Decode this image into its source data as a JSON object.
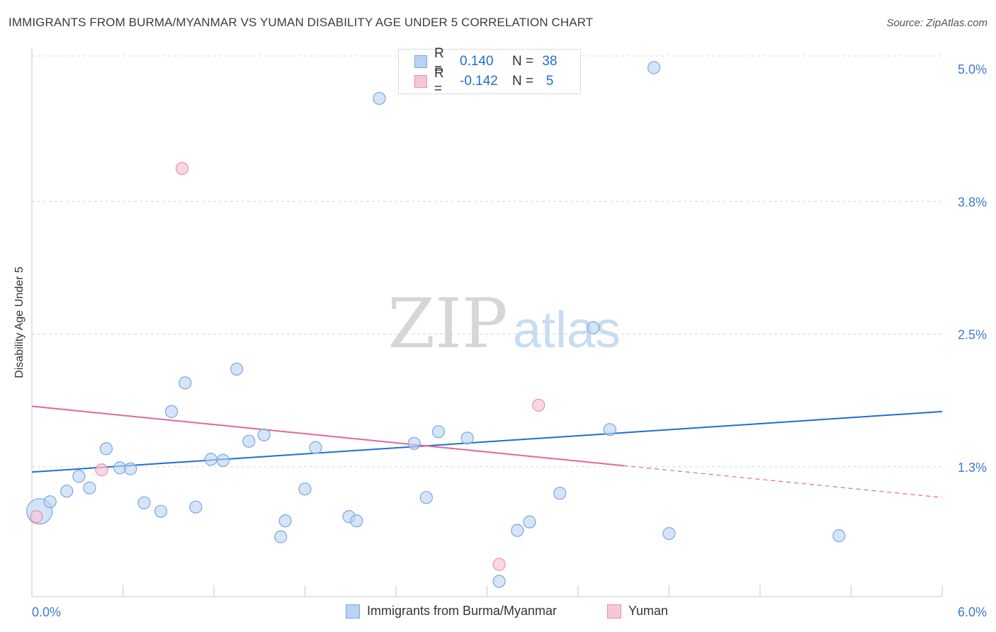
{
  "title": "IMMIGRANTS FROM BURMA/MYANMAR VS YUMAN DISABILITY AGE UNDER 5 CORRELATION CHART",
  "source": "Source: ZipAtlas.com",
  "watermark": {
    "zip": "ZIP",
    "atlas": "atlas"
  },
  "colors": {
    "blue": "#1f6fcf",
    "blue_fill": "#b9d3f3",
    "blue_stroke": "#7aa6de",
    "pink": "#e2679a",
    "pink_fill": "#f7c6d6",
    "pink_stroke": "#eb8fb1",
    "grid": "#d9d9d9",
    "tick_label": "#3d7ad1"
  },
  "legend": {
    "rows": [
      {
        "r_label": "R =",
        "r_value": "0.140",
        "n_label": "N =",
        "n_value": "38"
      },
      {
        "r_label": "R =",
        "r_value": "-0.142",
        "n_label": "N =",
        "n_value": "5"
      }
    ]
  },
  "bottom_legend": [
    "Immigrants from Burma/Myanmar",
    "Yuman"
  ],
  "chart_data": {
    "type": "scatter",
    "title": "IMMIGRANTS FROM BURMA/MYANMAR VS YUMAN DISABILITY AGE UNDER 5 CORRELATION CHART",
    "xlabel": "",
    "ylabel": "Disability Age Under 5",
    "xlim": [
      0.0,
      6.0
    ],
    "ylim": [
      0.0,
      5.1
    ],
    "x_tick_labels": [
      "0.0%",
      "6.0%"
    ],
    "y_tick_labels": [
      "5.0%",
      "3.8%",
      "2.5%",
      "1.3%"
    ],
    "y_tick_values": [
      5.0,
      3.75,
      2.5,
      1.25
    ],
    "series": [
      {
        "name": "Immigrants from Burma/Myanmar",
        "r": 0.14,
        "n": 38,
        "trend": {
          "x": [
            0.0,
            6.0
          ],
          "y": [
            1.2,
            1.77
          ]
        },
        "points": [
          {
            "x": 0.05,
            "y": 0.83,
            "big": true
          },
          {
            "x": 0.12,
            "y": 0.92
          },
          {
            "x": 0.23,
            "y": 1.02
          },
          {
            "x": 0.31,
            "y": 1.16
          },
          {
            "x": 0.38,
            "y": 1.05
          },
          {
            "x": 0.49,
            "y": 1.42
          },
          {
            "x": 0.58,
            "y": 1.24
          },
          {
            "x": 0.65,
            "y": 1.23
          },
          {
            "x": 0.74,
            "y": 0.91
          },
          {
            "x": 0.85,
            "y": 0.83
          },
          {
            "x": 0.92,
            "y": 1.77
          },
          {
            "x": 1.01,
            "y": 2.04
          },
          {
            "x": 1.08,
            "y": 0.87
          },
          {
            "x": 1.18,
            "y": 1.32
          },
          {
            "x": 1.26,
            "y": 1.31
          },
          {
            "x": 1.35,
            "y": 2.17
          },
          {
            "x": 1.43,
            "y": 1.49
          },
          {
            "x": 1.53,
            "y": 1.55
          },
          {
            "x": 1.64,
            "y": 0.59
          },
          {
            "x": 1.67,
            "y": 0.74
          },
          {
            "x": 1.8,
            "y": 1.04
          },
          {
            "x": 1.87,
            "y": 1.43
          },
          {
            "x": 2.09,
            "y": 0.78
          },
          {
            "x": 2.14,
            "y": 0.74
          },
          {
            "x": 2.29,
            "y": 4.72
          },
          {
            "x": 2.52,
            "y": 1.47
          },
          {
            "x": 2.6,
            "y": 0.96
          },
          {
            "x": 2.68,
            "y": 1.58
          },
          {
            "x": 2.87,
            "y": 1.52
          },
          {
            "x": 3.08,
            "y": 0.17
          },
          {
            "x": 3.2,
            "y": 0.65
          },
          {
            "x": 3.28,
            "y": 0.73
          },
          {
            "x": 3.48,
            "y": 1.0
          },
          {
            "x": 3.7,
            "y": 2.56
          },
          {
            "x": 3.81,
            "y": 1.6
          },
          {
            "x": 4.1,
            "y": 5.01
          },
          {
            "x": 4.2,
            "y": 0.62
          },
          {
            "x": 5.32,
            "y": 0.6
          }
        ]
      },
      {
        "name": "Yuman",
        "r": -0.142,
        "n": 5,
        "trend": {
          "x": [
            0.0,
            3.9
          ],
          "y": [
            1.82,
            1.26
          ]
        },
        "trend_dashed": {
          "x": [
            3.9,
            6.0
          ],
          "y": [
            1.26,
            0.96
          ]
        },
        "points": [
          {
            "x": 0.03,
            "y": 0.78
          },
          {
            "x": 0.46,
            "y": 1.22
          },
          {
            "x": 0.99,
            "y": 4.06
          },
          {
            "x": 3.08,
            "y": 0.33
          },
          {
            "x": 3.34,
            "y": 1.83
          }
        ]
      }
    ]
  }
}
